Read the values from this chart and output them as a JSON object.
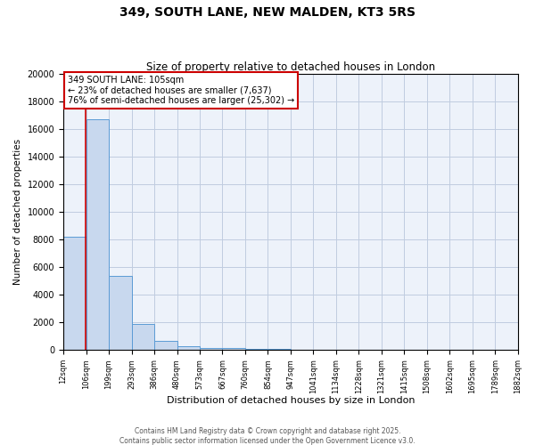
{
  "title1": "349, SOUTH LANE, NEW MALDEN, KT3 5RS",
  "title2": "Size of property relative to detached houses in London",
  "xlabel": "Distribution of detached houses by size in London",
  "ylabel": "Number of detached properties",
  "bar_color": "#c8d8ee",
  "bar_edge_color": "#5b9bd5",
  "background_color": "#edf2fa",
  "grid_color": "#c0cce0",
  "red_line_color": "#cc0000",
  "annotation_text": "349 SOUTH LANE: 105sqm\n← 23% of detached houses are smaller (7,637)\n76% of semi-detached houses are larger (25,302) →",
  "annotation_box_color": "#cc0000",
  "property_size": 105,
  "bin_edges": [
    12,
    106,
    199,
    293,
    386,
    480,
    573,
    667,
    760,
    854,
    947,
    1041,
    1134,
    1228,
    1321,
    1415,
    1508,
    1602,
    1695,
    1789,
    1882
  ],
  "bin_counts": [
    8200,
    16700,
    5400,
    1900,
    650,
    280,
    180,
    130,
    110,
    90,
    0,
    0,
    0,
    0,
    0,
    0,
    0,
    0,
    0,
    0
  ],
  "ylim": [
    0,
    20000
  ],
  "yticks": [
    0,
    2000,
    4000,
    6000,
    8000,
    10000,
    12000,
    14000,
    16000,
    18000,
    20000
  ],
  "footer1": "Contains HM Land Registry data © Crown copyright and database right 2025.",
  "footer2": "Contains public sector information licensed under the Open Government Licence v3.0."
}
